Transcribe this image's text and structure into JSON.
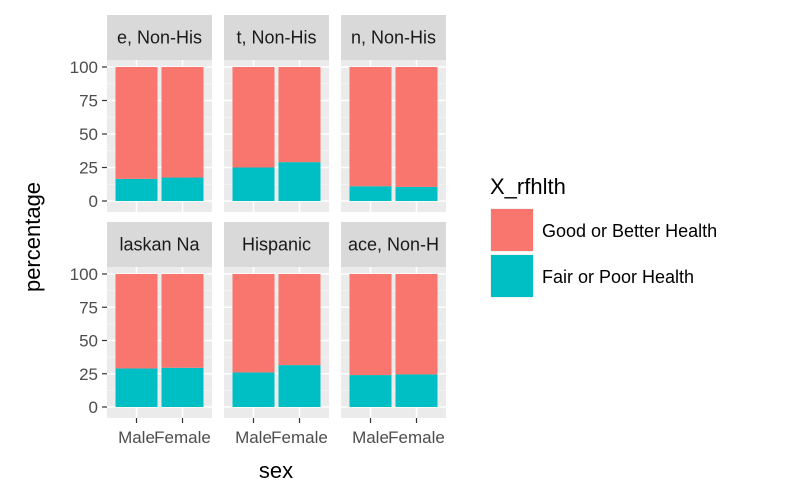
{
  "chart_data": {
    "type": "bar",
    "stacked": true,
    "xlabel": "sex",
    "ylabel": "percentage",
    "ylim": [
      0,
      100
    ],
    "yticks": [
      0,
      25,
      50,
      75,
      100
    ],
    "categories": [
      "Male",
      "Female"
    ],
    "legend": {
      "title": "X_rfhlth",
      "position": "right",
      "entries": [
        {
          "name": "Good or Better Health",
          "color": "#F8766D"
        },
        {
          "name": "Fair or Poor Health",
          "color": "#00BFC4"
        }
      ]
    },
    "facets": [
      {
        "strip": "e, Non-His",
        "series": [
          {
            "name": "Fair or Poor Health",
            "values": [
              16.5,
              17.5
            ]
          },
          {
            "name": "Good or Better Health",
            "values": [
              83.5,
              82.5
            ]
          }
        ]
      },
      {
        "strip": "t, Non-His",
        "series": [
          {
            "name": "Fair or Poor Health",
            "values": [
              25,
              29
            ]
          },
          {
            "name": "Good or Better Health",
            "values": [
              75,
              71
            ]
          }
        ]
      },
      {
        "strip": "n, Non-His",
        "series": [
          {
            "name": "Fair or Poor Health",
            "values": [
              11,
              10.5
            ]
          },
          {
            "name": "Good or Better Health",
            "values": [
              89,
              89.5
            ]
          }
        ]
      },
      {
        "strip": "laskan Na",
        "series": [
          {
            "name": "Fair or Poor Health",
            "values": [
              29,
              29.5
            ]
          },
          {
            "name": "Good or Better Health",
            "values": [
              71,
              70.5
            ]
          }
        ]
      },
      {
        "strip": "Hispanic",
        "series": [
          {
            "name": "Fair or Poor Health",
            "values": [
              26,
              31.5
            ]
          },
          {
            "name": "Good or Better Health",
            "values": [
              74,
              68.5
            ]
          }
        ]
      },
      {
        "strip": "ace, Non-H",
        "series": [
          {
            "name": "Fair or Poor Health",
            "values": [
              24,
              24.5
            ]
          },
          {
            "name": "Good or Better Health",
            "values": [
              76,
              75.5
            ]
          }
        ]
      }
    ]
  }
}
